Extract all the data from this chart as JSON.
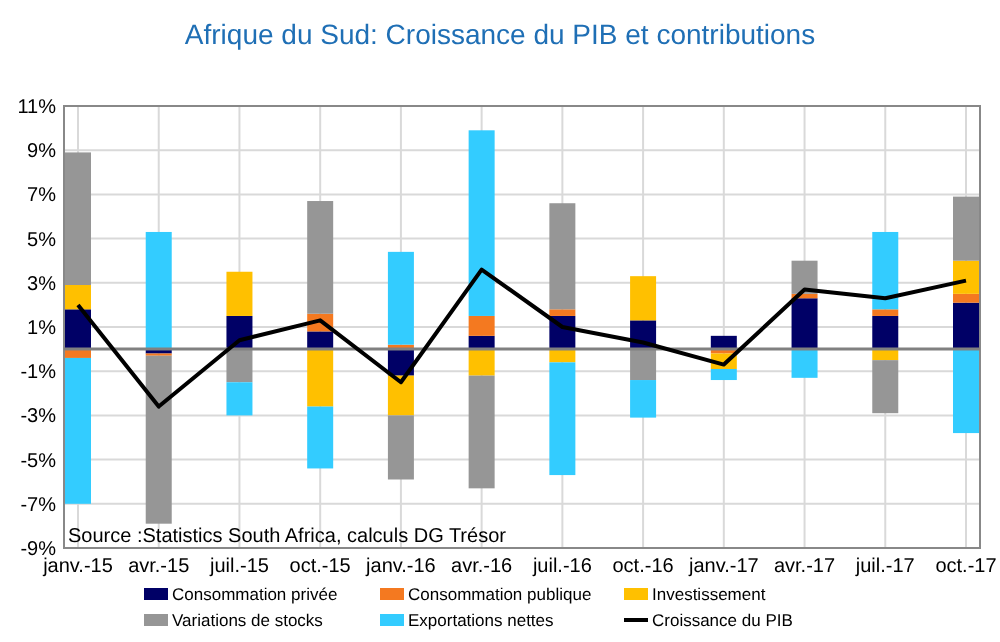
{
  "chart_data": {
    "type": "bar",
    "title": "Afrique du Sud: Croissance du PIB et contributions",
    "stacked": true,
    "categories": [
      "janv.-15",
      "avr.-15",
      "juil.-15",
      "oct.-15",
      "janv.-16",
      "avr.-16",
      "juil.-16",
      "oct.-16",
      "janv.-17",
      "avr.-17",
      "juil.-17",
      "oct.-17"
    ],
    "series": [
      {
        "name": "Consommation privée",
        "color": "#000066",
        "values": [
          1.8,
          -0.2,
          1.5,
          0.8,
          -1.2,
          0.6,
          1.5,
          1.3,
          0.6,
          2.3,
          1.5,
          2.1
        ]
      },
      {
        "name": "Consommation publique",
        "color": "#f47920",
        "values": [
          -0.4,
          -0.1,
          null,
          0.8,
          0.2,
          0.9,
          0.3,
          0,
          -0.2,
          0.2,
          0.3,
          0.4
        ]
      },
      {
        "name": "Investissement",
        "color": "#ffc000",
        "values": [
          1.1,
          0,
          2.0,
          -2.6,
          -1.8,
          -1.2,
          -0.6,
          2.0,
          -0.7,
          0,
          -0.5,
          1.5
        ]
      },
      {
        "name": "Variations de stocks",
        "color": "#969696",
        "values": [
          6.0,
          -7.6,
          -1.5,
          5.1,
          -2.9,
          -5.1,
          4.8,
          -1.4,
          0,
          1.5,
          -2.4,
          2.9
        ]
      },
      {
        "name": "Exportations nettes",
        "color": "#33ccff",
        "values": [
          -6.6,
          5.3,
          -1.5,
          -2.8,
          4.2,
          8.4,
          -5.1,
          -1.7,
          -0.5,
          -1.3,
          3.5,
          -3.8
        ]
      },
      {
        "name": "Croissance du PIB",
        "type": "line",
        "color": "#000000",
        "values": [
          2.0,
          -2.6,
          0.4,
          1.3,
          -1.5,
          3.6,
          1.0,
          0.3,
          -0.7,
          2.7,
          2.3,
          3.1
        ]
      }
    ],
    "ylim": [
      -9,
      11
    ],
    "yticks": [
      {
        "value": -9,
        "label": "-9%"
      },
      {
        "value": -7,
        "label": "-7%"
      },
      {
        "value": -5,
        "label": "-5%"
      },
      {
        "value": -3,
        "label": "-3%"
      },
      {
        "value": -1,
        "label": "-1%"
      },
      {
        "value": 1,
        "label": "1%"
      },
      {
        "value": 3,
        "label": "3%"
      },
      {
        "value": 5,
        "label": "5%"
      },
      {
        "value": 7,
        "label": "7%"
      },
      {
        "value": 9,
        "label": "9%"
      },
      {
        "value": 11,
        "label": "11%"
      }
    ],
    "grid": true,
    "legend": "bottom",
    "marker": "none",
    "line_style": "solid",
    "annotations": [
      "Source :Statistics South Africa, calculs DG Trésor"
    ]
  }
}
